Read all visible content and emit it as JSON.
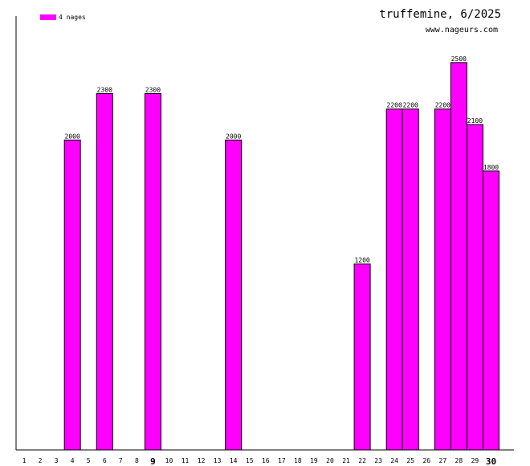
{
  "chart_data": {
    "type": "bar",
    "title": "truffemine, 6/2025",
    "subtitle": "www.nageurs.com",
    "legend": [
      "4 nages"
    ],
    "legend_position": "top-left",
    "bar_color": "#ff00ff",
    "categories": [
      "1",
      "2",
      "3",
      "4",
      "5",
      "6",
      "7",
      "8",
      "9",
      "10",
      "11",
      "12",
      "13",
      "14",
      "15",
      "16",
      "17",
      "18",
      "19",
      "20",
      "21",
      "22",
      "23",
      "24",
      "25",
      "26",
      "27",
      "28",
      "29",
      "30"
    ],
    "bold_categories": [
      "9",
      "30"
    ],
    "values": [
      null,
      null,
      null,
      2000,
      null,
      2300,
      null,
      null,
      2300,
      null,
      null,
      null,
      null,
      2000,
      null,
      null,
      null,
      null,
      null,
      null,
      null,
      1200,
      null,
      2200,
      2200,
      null,
      2200,
      2500,
      2100,
      1800
    ],
    "ylim": [
      0,
      2800
    ],
    "grid": false
  }
}
